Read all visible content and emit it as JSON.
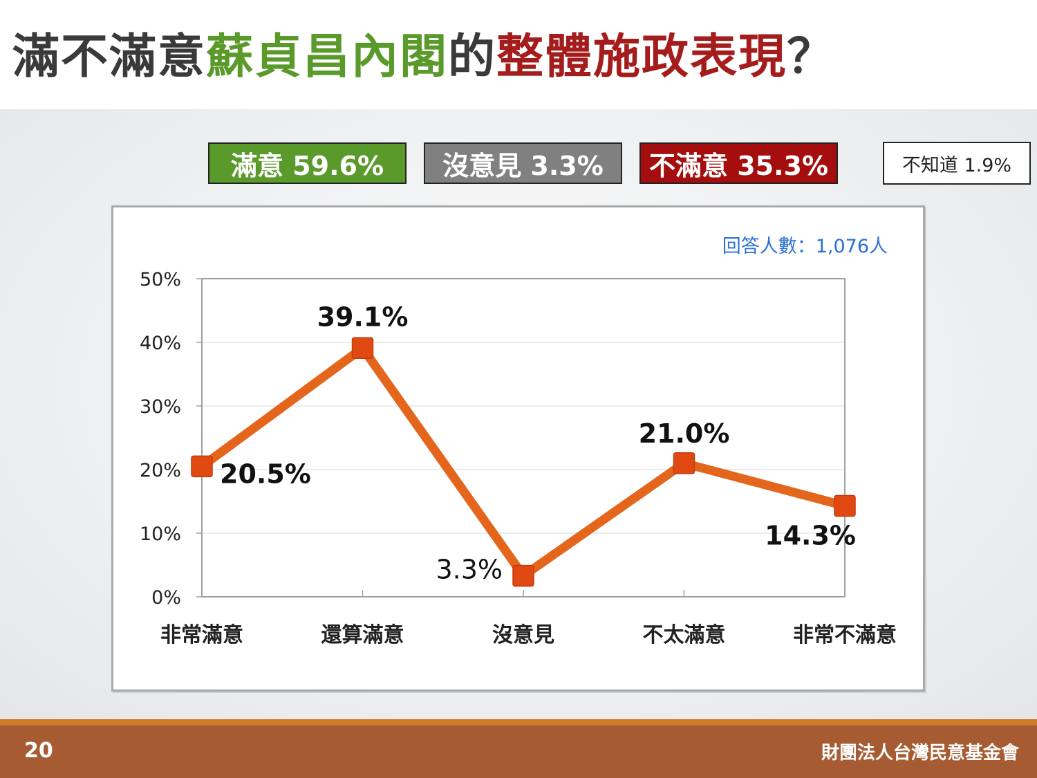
{
  "title": {
    "part1": "滿不滿意",
    "part2": "蘇貞昌內閣",
    "part3": "的",
    "part4": "整體施政表現",
    "part5": "？"
  },
  "badges": {
    "satisfied": "滿意 59.6%",
    "no_opinion": "沒意見 3.3%",
    "dissatisfied": "不滿意 35.3%",
    "dont_know": "不知道 1.9%"
  },
  "colors": {
    "green": "#5a9a2a",
    "gray": "#808080",
    "red": "#a50e0e",
    "line": "#e4661c",
    "marker": "#e04a12",
    "respondents": "#2a6fd6",
    "footer": "#a65b33"
  },
  "chart_data": {
    "type": "line",
    "categories": [
      "非常滿意",
      "還算滿意",
      "沒意見",
      "不太滿意",
      "非常不滿意"
    ],
    "values": [
      20.5,
      39.1,
      3.3,
      21.0,
      14.3
    ],
    "labels": [
      "20.5%",
      "39.1%",
      "3.3%",
      "21.0%",
      "14.3%"
    ],
    "yticks": [
      "0%",
      "10%",
      "20%",
      "30%",
      "40%",
      "50%"
    ],
    "ylim": [
      0,
      50
    ],
    "grid": true,
    "respondents": "回答人數：1,076人"
  },
  "footer": {
    "page": "20",
    "org": "財團法人台灣民意基金會"
  }
}
